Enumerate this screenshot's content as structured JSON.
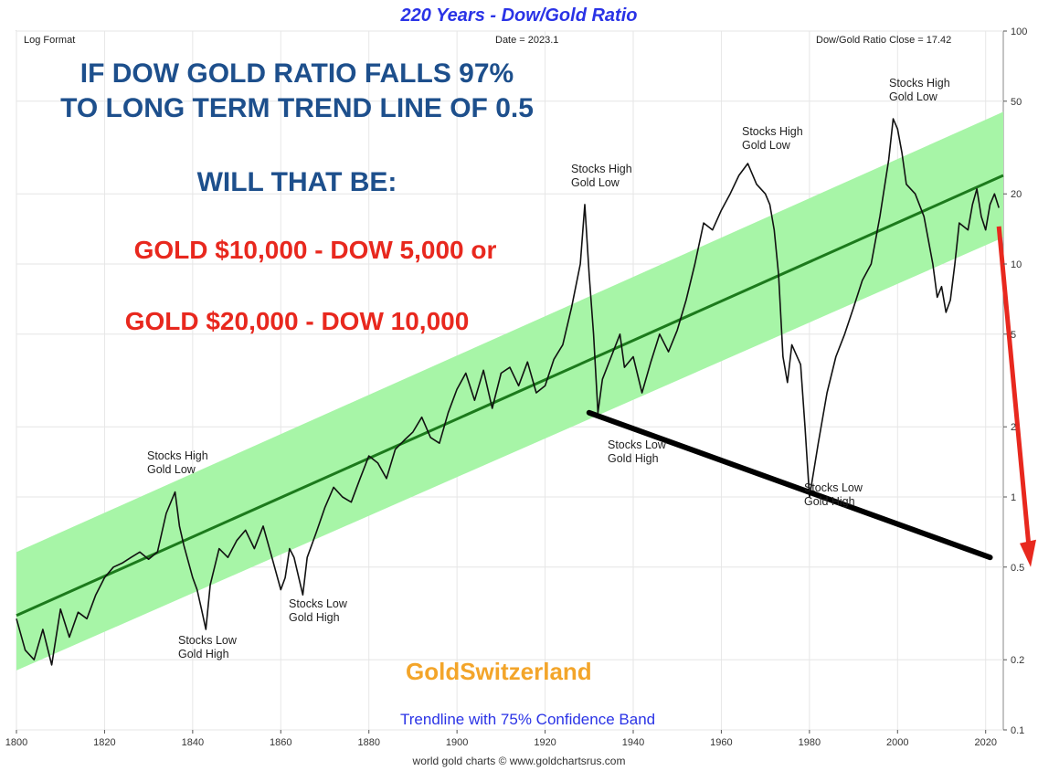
{
  "chart_data": {
    "type": "line",
    "title": "220 Years - Dow/Gold Ratio",
    "scale_note": "Log Format",
    "date_label": "Date = 2023.1",
    "close_label": "Dow/Gold Ratio Close = 17.42",
    "yscale": "log",
    "ylim": [
      0.1,
      100
    ],
    "xlim": [
      1800,
      2024
    ],
    "x_ticks": [
      "1800",
      "1820",
      "1840",
      "1860",
      "1880",
      "1900",
      "1920",
      "1940",
      "1960",
      "1980",
      "2000",
      "2020"
    ],
    "y_ticks": [
      0.1,
      0.2,
      0.5,
      1,
      2,
      5,
      10,
      20,
      50,
      100
    ],
    "y_tick_labels": [
      "0.1",
      "0.2",
      "0.5",
      "1",
      "2",
      "5",
      "10",
      "20",
      "50",
      "100"
    ],
    "grid": true,
    "series": [
      {
        "color": "#111111",
        "points": [
          [
            1800,
            0.3
          ],
          [
            1802,
            0.22
          ],
          [
            1804,
            0.2
          ],
          [
            1806,
            0.27
          ],
          [
            1808,
            0.19
          ],
          [
            1810,
            0.33
          ],
          [
            1812,
            0.25
          ],
          [
            1814,
            0.32
          ],
          [
            1816,
            0.3
          ],
          [
            1818,
            0.38
          ],
          [
            1820,
            0.45
          ],
          [
            1822,
            0.5
          ],
          [
            1824,
            0.52
          ],
          [
            1826,
            0.55
          ],
          [
            1828,
            0.58
          ],
          [
            1830,
            0.54
          ],
          [
            1832,
            0.58
          ],
          [
            1834,
            0.85
          ],
          [
            1836,
            1.05
          ],
          [
            1837,
            0.75
          ],
          [
            1838,
            0.62
          ],
          [
            1840,
            0.45
          ],
          [
            1841,
            0.4
          ],
          [
            1842,
            0.33
          ],
          [
            1843,
            0.27
          ],
          [
            1844,
            0.42
          ],
          [
            1846,
            0.6
          ],
          [
            1848,
            0.55
          ],
          [
            1850,
            0.65
          ],
          [
            1852,
            0.72
          ],
          [
            1854,
            0.6
          ],
          [
            1856,
            0.75
          ],
          [
            1858,
            0.55
          ],
          [
            1860,
            0.4
          ],
          [
            1861,
            0.45
          ],
          [
            1862,
            0.6
          ],
          [
            1863,
            0.55
          ],
          [
            1865,
            0.38
          ],
          [
            1866,
            0.55
          ],
          [
            1868,
            0.7
          ],
          [
            1870,
            0.9
          ],
          [
            1872,
            1.1
          ],
          [
            1874,
            1.0
          ],
          [
            1876,
            0.95
          ],
          [
            1878,
            1.2
          ],
          [
            1880,
            1.5
          ],
          [
            1882,
            1.4
          ],
          [
            1884,
            1.2
          ],
          [
            1886,
            1.6
          ],
          [
            1888,
            1.75
          ],
          [
            1890,
            1.9
          ],
          [
            1892,
            2.2
          ],
          [
            1894,
            1.8
          ],
          [
            1896,
            1.7
          ],
          [
            1898,
            2.3
          ],
          [
            1900,
            2.9
          ],
          [
            1902,
            3.4
          ],
          [
            1904,
            2.6
          ],
          [
            1906,
            3.5
          ],
          [
            1908,
            2.4
          ],
          [
            1910,
            3.4
          ],
          [
            1912,
            3.6
          ],
          [
            1914,
            3.0
          ],
          [
            1916,
            3.8
          ],
          [
            1918,
            2.8
          ],
          [
            1920,
            3.0
          ],
          [
            1922,
            3.9
          ],
          [
            1924,
            4.5
          ],
          [
            1926,
            6.5
          ],
          [
            1928,
            10.0
          ],
          [
            1929,
            18.0
          ],
          [
            1930,
            9.0
          ],
          [
            1931,
            5.0
          ],
          [
            1932,
            2.3
          ],
          [
            1933,
            3.2
          ],
          [
            1935,
            4.0
          ],
          [
            1937,
            5.0
          ],
          [
            1938,
            3.6
          ],
          [
            1940,
            4.0
          ],
          [
            1942,
            2.8
          ],
          [
            1944,
            3.8
          ],
          [
            1946,
            5.0
          ],
          [
            1948,
            4.2
          ],
          [
            1950,
            5.2
          ],
          [
            1952,
            7.0
          ],
          [
            1954,
            10.0
          ],
          [
            1956,
            15.0
          ],
          [
            1958,
            14.0
          ],
          [
            1960,
            17.0
          ],
          [
            1962,
            20.0
          ],
          [
            1964,
            24.0
          ],
          [
            1966,
            27.0
          ],
          [
            1968,
            22.0
          ],
          [
            1970,
            20.0
          ],
          [
            1971,
            18.0
          ],
          [
            1972,
            14.0
          ],
          [
            1973,
            9.0
          ],
          [
            1974,
            4.0
          ],
          [
            1975,
            3.1
          ],
          [
            1976,
            4.5
          ],
          [
            1978,
            3.7
          ],
          [
            1979,
            2.0
          ],
          [
            1980,
            1.0
          ],
          [
            1981,
            1.3
          ],
          [
            1982,
            1.7
          ],
          [
            1984,
            2.8
          ],
          [
            1986,
            4.0
          ],
          [
            1988,
            5.0
          ],
          [
            1990,
            6.5
          ],
          [
            1992,
            8.5
          ],
          [
            1994,
            10.0
          ],
          [
            1996,
            16.0
          ],
          [
            1998,
            28.0
          ],
          [
            1999,
            42.0
          ],
          [
            2000,
            38.0
          ],
          [
            2001,
            30.0
          ],
          [
            2002,
            22.0
          ],
          [
            2004,
            20.0
          ],
          [
            2006,
            16.0
          ],
          [
            2008,
            10.0
          ],
          [
            2009,
            7.2
          ],
          [
            2010,
            8.0
          ],
          [
            2011,
            6.2
          ],
          [
            2012,
            7.0
          ],
          [
            2013,
            10.0
          ],
          [
            2014,
            15.0
          ],
          [
            2016,
            14.0
          ],
          [
            2017,
            18.0
          ],
          [
            2018,
            21.0
          ],
          [
            2019,
            16.0
          ],
          [
            2020,
            14.0
          ],
          [
            2021,
            18.0
          ],
          [
            2022,
            20.0
          ],
          [
            2023,
            17.42
          ]
        ]
      }
    ],
    "trendline": {
      "x": [
        1800,
        2024
      ],
      "y": [
        0.31,
        24
      ]
    },
    "band": {
      "lower": [
        0.18,
        13
      ],
      "upper": [
        0.58,
        45
      ]
    },
    "support_line": {
      "x": [
        1930,
        2021
      ],
      "y": [
        2.3,
        0.55
      ]
    },
    "projection_arrow": {
      "x": [
        2023,
        2024
      ],
      "y": [
        14.5,
        0.5
      ]
    },
    "annotations": [
      {
        "lines": [
          "Stocks High",
          "Gold Low"
        ]
      },
      {
        "lines": [
          "Stocks Low",
          "Gold High"
        ]
      },
      {
        "lines": [
          "Stocks Low",
          "Gold High"
        ]
      },
      {
        "lines": [
          "Stocks High",
          "Gold Low"
        ]
      },
      {
        "lines": [
          "Stocks Low",
          "Gold High"
        ]
      },
      {
        "lines": [
          "Stocks High",
          "Gold Low"
        ]
      },
      {
        "lines": [
          "Stocks Low",
          "Gold High"
        ]
      },
      {
        "lines": [
          "Stocks High",
          "Gold Low"
        ]
      }
    ],
    "headline": {
      "blue1": "IF DOW GOLD RATIO FALLS 97%",
      "blue2": "TO LONG TERM TREND LINE  OF 0.5",
      "blue3": "WILL THAT BE:",
      "red1": "GOLD $10,000 - DOW 5,000 or",
      "red2": "GOLD $20,000 - DOW 10,000"
    },
    "brand": "GoldSwitzerland",
    "band_note": "Trendline with 75% Confidence Band",
    "credit": "world gold charts © www.goldchartsrus.com",
    "colors": {
      "band": "#a7f5a7",
      "trend": "#1c7a1c",
      "price": "#111111",
      "support": "#000000",
      "arrow": "#e8281e"
    }
  }
}
